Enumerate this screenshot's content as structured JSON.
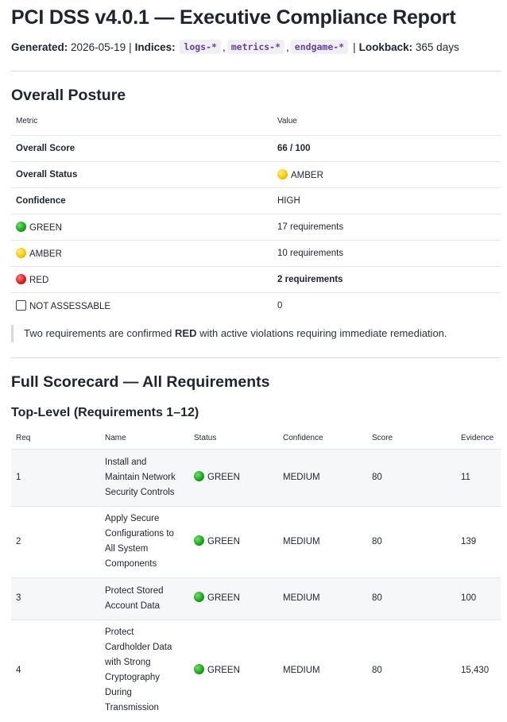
{
  "title": "PCI DSS v4.0.1 — Executive Compliance Report",
  "meta": {
    "generated_label": "Generated:",
    "generated_value": "2026-05-19",
    "divider": "|",
    "indices_label": "Indices:",
    "indices": [
      "logs-*",
      "metrics-*",
      "endgame-*"
    ],
    "comma": ",",
    "lookback_label": "Lookback:",
    "lookback_value": "365 days"
  },
  "overall": {
    "heading": "Overall Posture",
    "headers": [
      "Metric",
      "Value"
    ],
    "rows": [
      {
        "metric": "Overall Score",
        "value": "66 / 100",
        "icon": ""
      },
      {
        "metric": "Overall Status",
        "value": "AMBER",
        "icon": "amber"
      },
      {
        "metric": "Confidence",
        "value": "HIGH",
        "icon": ""
      },
      {
        "metric": "GREEN",
        "value": "17 requirements",
        "icon": "green"
      },
      {
        "metric": "AMBER",
        "value": "10 requirements",
        "icon": "amber"
      },
      {
        "metric": "RED",
        "value": "2 requirements",
        "icon": "red"
      },
      {
        "metric": "NOT ASSESSABLE",
        "value": "0",
        "icon": "box"
      }
    ],
    "callout_pre": "Two requirements are confirmed ",
    "callout_bold": "RED",
    "callout_post": " with active violations requiring immediate remediation."
  },
  "scorecard": {
    "heading": "Full Scorecard — All Requirements",
    "subheading": "Top-Level (Requirements 1–12)",
    "headers": [
      "Req",
      "Name",
      "Status",
      "Confidence",
      "Score",
      "Evidence"
    ],
    "rows": [
      {
        "req": "1",
        "name": [
          "Install and",
          "Maintain Network",
          "Security Controls"
        ],
        "status": "GREEN",
        "confidence": "MEDIUM",
        "score": "80",
        "evidence": "11"
      },
      {
        "req": "2",
        "name": [
          "Apply Secure",
          "Configurations to",
          "All System",
          "Components"
        ],
        "status": "GREEN",
        "confidence": "MEDIUM",
        "score": "80",
        "evidence": "139"
      },
      {
        "req": "3",
        "name": [
          "Protect Stored",
          "Account Data"
        ],
        "status": "GREEN",
        "confidence": "MEDIUM",
        "score": "80",
        "evidence": "100"
      },
      {
        "req": "4",
        "name": [
          "Protect",
          "Cardholder Data",
          "with Strong",
          "Cryptography",
          "During",
          "Transmission"
        ],
        "status": "GREEN",
        "confidence": "MEDIUM",
        "score": "80",
        "evidence": "15,430"
      }
    ]
  },
  "colors": {
    "green": "#17a317",
    "amber": "#f5c400",
    "red": "#d61b1b",
    "code_text": "#6b3fa0"
  }
}
